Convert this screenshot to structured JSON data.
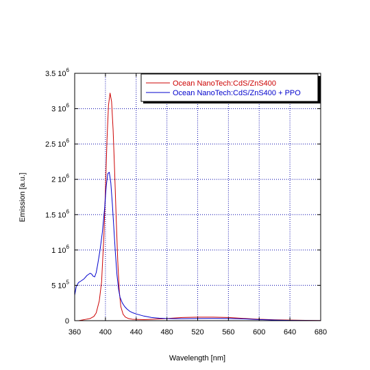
{
  "chart_data": {
    "type": "line",
    "xlabel": "Wavelength [nm]",
    "ylabel": "Emission [a.u.]",
    "xlim": [
      360,
      680
    ],
    "ylim": [
      0,
      3500000
    ],
    "grid": true,
    "legend_position": "top-right",
    "x_ticks": [
      "360",
      "400",
      "440",
      "480",
      "520",
      "560",
      "600",
      "640",
      "680"
    ],
    "y_ticks": [
      {
        "value": 0,
        "mantissa": "0",
        "exp": ""
      },
      {
        "value": 500000,
        "mantissa": "5 10",
        "exp": "5"
      },
      {
        "value": 1000000,
        "mantissa": "1 10",
        "exp": "6"
      },
      {
        "value": 1500000,
        "mantissa": "1.5 10",
        "exp": "6"
      },
      {
        "value": 2000000,
        "mantissa": "2 10",
        "exp": "6"
      },
      {
        "value": 2500000,
        "mantissa": "2.5 10",
        "exp": "6"
      },
      {
        "value": 3000000,
        "mantissa": "3 10",
        "exp": "6"
      },
      {
        "value": 3500000,
        "mantissa": "3.5 10",
        "exp": "6"
      }
    ],
    "series": [
      {
        "name": "Ocean NanoTech:CdS/ZnS400",
        "color": "#cc0000",
        "x": [
          365,
          370,
          375,
          380,
          385,
          388,
          392,
          395,
          398,
          400,
          402,
          404,
          406,
          408,
          410,
          412,
          414,
          416,
          418,
          420,
          423,
          426,
          430,
          435,
          440,
          450,
          460,
          470,
          480,
          490,
          500,
          520,
          540,
          560,
          580,
          600,
          620,
          640,
          660,
          680
        ],
        "y": [
          0,
          10000,
          20000,
          30000,
          60000,
          110000,
          280000,
          550000,
          1200000,
          1850000,
          2550000,
          3050000,
          3220000,
          3100000,
          2700000,
          2100000,
          1450000,
          850000,
          420000,
          200000,
          90000,
          50000,
          30000,
          20000,
          18000,
          15000,
          20000,
          25000,
          30000,
          38000,
          45000,
          50000,
          50000,
          45000,
          32000,
          20000,
          12000,
          8000,
          5000,
          2000
        ]
      },
      {
        "name": "Ocean NanoTech:CdS/ZnS400 + PPO",
        "color": "#0000cc",
        "x": [
          360,
          362,
          365,
          368,
          372,
          376,
          380,
          382,
          384,
          386,
          388,
          390,
          393,
          396,
          399,
          401,
          403,
          405,
          407,
          409,
          411,
          413,
          415,
          417,
          419,
          422,
          425,
          428,
          432,
          436,
          440,
          450,
          460,
          470,
          480,
          490,
          500,
          520,
          540,
          560,
          580,
          600,
          620,
          640,
          660,
          680
        ],
        "y": [
          360000,
          480000,
          540000,
          560000,
          590000,
          640000,
          670000,
          660000,
          630000,
          620000,
          680000,
          800000,
          1000000,
          1250000,
          1600000,
          1900000,
          2080000,
          2100000,
          1950000,
          1650000,
          1300000,
          950000,
          650000,
          450000,
          330000,
          250000,
          200000,
          165000,
          130000,
          110000,
          95000,
          65000,
          45000,
          35000,
          30000,
          28000,
          28000,
          30000,
          32000,
          30000,
          25000,
          15000,
          8000,
          4000,
          2000,
          1000
        ]
      }
    ]
  }
}
